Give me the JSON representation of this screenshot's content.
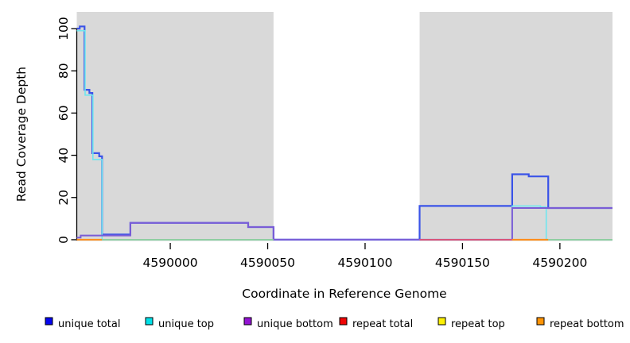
{
  "chart_data": {
    "type": "line",
    "subtype": "step-coverage",
    "title": "",
    "xlabel": "Coordinate in Reference Genome",
    "ylabel": "Read Coverage Depth",
    "xlim": [
      4589952,
      4590227
    ],
    "ylim": [
      -0.4,
      107.9
    ],
    "x_ticks": [
      4590000,
      4590050,
      4590100,
      4590150,
      4590200
    ],
    "y_ticks": [
      0,
      20,
      40,
      60,
      80,
      100
    ],
    "grid": false,
    "legend_position": "bottom",
    "panel_shade_color": "#D9D9D9",
    "shaded_regions": [
      {
        "from": 4589952,
        "to": 4590053
      },
      {
        "from": 4590128,
        "to": 4590227
      }
    ],
    "legend": [
      {
        "label": "unique total",
        "color": "#0505F0"
      },
      {
        "label": "unique top",
        "color": "#00E1E8"
      },
      {
        "label": "unique bottom",
        "color": "#9313D3"
      },
      {
        "label": "repeat total",
        "color": "#F00505"
      },
      {
        "label": "repeat top",
        "color": "#FCF005"
      },
      {
        "label": "repeat bottom",
        "color": "#FF9405"
      }
    ],
    "series": [
      {
        "name": "unique total",
        "color": "#3A53E8",
        "width": 2.2,
        "segments": [
          [
            [
              4589952,
              100
            ],
            [
              4589953.5,
              101
            ],
            [
              4589956,
              71
            ],
            [
              4589958.5,
              69.5
            ],
            [
              4589960,
              41
            ],
            [
              4589963.5,
              39.5
            ],
            [
              4589965,
              2.5
            ],
            [
              4589979.5,
              8
            ],
            [
              4590040,
              6
            ],
            [
              4590053,
              0
            ],
            [
              4590128,
              16
            ],
            [
              4590175.5,
              31
            ],
            [
              4590184,
              30
            ],
            [
              4590194,
              15
            ],
            [
              4590227,
              15
            ]
          ]
        ]
      },
      {
        "name": "unique top",
        "color": "#6FE6EF",
        "width": 1.6,
        "segments": [
          [
            [
              4589952,
              99
            ],
            [
              4589956.3,
              68.5
            ],
            [
              4589960.3,
              38
            ],
            [
              4589965,
              0
            ],
            [
              4590175.5,
              16
            ],
            [
              4590190,
              15.5
            ],
            [
              4590193,
              0
            ],
            [
              4590227,
              0
            ]
          ]
        ]
      },
      {
        "name": "unique bottom",
        "color": "#7A5CD6",
        "width": 2,
        "segments": [
          [
            [
              4589952,
              1
            ],
            [
              4589954,
              2
            ],
            [
              4589979.5,
              8
            ],
            [
              4590040,
              6
            ],
            [
              4590053,
              0
            ],
            [
              4590175.5,
              15
            ],
            [
              4590227,
              15
            ]
          ]
        ]
      },
      {
        "name": "repeat total",
        "color": "#E8506B",
        "width": 1.6,
        "segments": [
          [
            [
              4590128,
              0
            ],
            [
              4590194,
              0
            ]
          ]
        ]
      },
      {
        "name": "repeat top",
        "color": "#F5E642",
        "width": 1.6,
        "segments": [
          [
            [
              4590175.5,
              0
            ],
            [
              4590194,
              0
            ]
          ]
        ]
      },
      {
        "name": "repeat bottom",
        "color": "#FF8C1A",
        "width": 2,
        "segments": [
          [
            [
              4589952,
              0
            ],
            [
              4589965,
              0
            ]
          ],
          [
            [
              4590175.5,
              0
            ],
            [
              4590194,
              0
            ]
          ]
        ]
      },
      {
        "name": "zero baseline green",
        "color": "#8FCB96",
        "width": 1.6,
        "segments": [
          [
            [
              4589965,
              0
            ],
            [
              4590053,
              0
            ]
          ],
          [
            [
              4590194,
              0
            ],
            [
              4590227,
              0
            ]
          ]
        ]
      }
    ]
  }
}
